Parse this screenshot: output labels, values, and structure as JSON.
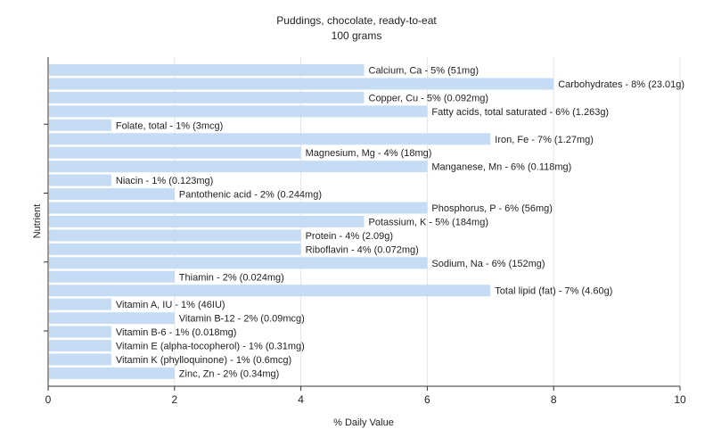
{
  "chart_data": {
    "type": "bar",
    "orientation": "horizontal",
    "title": "Puddings, chocolate, ready-to-eat",
    "subtitle": "100 grams",
    "xlabel": "% Daily Value",
    "ylabel": "Nutrient",
    "xlim": [
      0,
      10
    ],
    "xticks": [
      "0",
      "2",
      "4",
      "6",
      "8",
      "10"
    ],
    "grid": true,
    "bar_color": "#c6dcf5",
    "bars": [
      {
        "label": "Calcium, Ca - 5% (51mg)",
        "value": 5
      },
      {
        "label": "Carbohydrates - 8% (23.01g)",
        "value": 8
      },
      {
        "label": "Copper, Cu - 5% (0.092mg)",
        "value": 5
      },
      {
        "label": "Fatty acids, total saturated - 6% (1.263g)",
        "value": 6
      },
      {
        "label": "Folate, total - 1% (3mcg)",
        "value": 1
      },
      {
        "label": "Iron, Fe - 7% (1.27mg)",
        "value": 7
      },
      {
        "label": "Magnesium, Mg - 4% (18mg)",
        "value": 4
      },
      {
        "label": "Manganese, Mn - 6% (0.118mg)",
        "value": 6
      },
      {
        "label": "Niacin - 1% (0.123mg)",
        "value": 1
      },
      {
        "label": "Pantothenic acid - 2% (0.244mg)",
        "value": 2
      },
      {
        "label": "Phosphorus, P - 6% (56mg)",
        "value": 6
      },
      {
        "label": "Potassium, K - 5% (184mg)",
        "value": 5
      },
      {
        "label": "Protein - 4% (2.09g)",
        "value": 4
      },
      {
        "label": "Riboflavin - 4% (0.072mg)",
        "value": 4
      },
      {
        "label": "Sodium, Na - 6% (152mg)",
        "value": 6
      },
      {
        "label": "Thiamin - 2% (0.024mg)",
        "value": 2
      },
      {
        "label": "Total lipid (fat) - 7% (4.60g)",
        "value": 7
      },
      {
        "label": "Vitamin A, IU - 1% (46IU)",
        "value": 1
      },
      {
        "label": "Vitamin B-12 - 2% (0.09mcg)",
        "value": 2
      },
      {
        "label": "Vitamin B-6 - 1% (0.018mg)",
        "value": 1
      },
      {
        "label": "Vitamin E (alpha-tocopherol) - 1% (0.31mg)",
        "value": 1
      },
      {
        "label": "Vitamin K (phylloquinone) - 1% (0.6mcg)",
        "value": 1
      },
      {
        "label": "Zinc, Zn - 2% (0.34mg)",
        "value": 2
      }
    ]
  }
}
